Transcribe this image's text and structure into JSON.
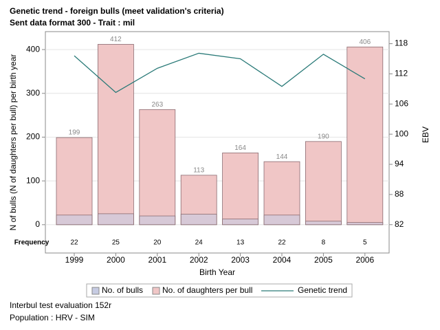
{
  "chart_data": {
    "type": "bar",
    "title": "Genetic trend - foreign bulls (meet validation's criteria)",
    "subtitle": "Sent data format 300 - Trait : mil",
    "x_label": "Birth Year",
    "y_label": "N of bulls (N of daughters per bull) per birth year",
    "y2_label": "EBV",
    "frequency_label": "Frequency",
    "categories": [
      "1999",
      "2000",
      "2001",
      "2002",
      "2003",
      "2004",
      "2005",
      "2006"
    ],
    "series": [
      {
        "name": "No. of bulls",
        "color": "#c6cbe2",
        "values": [
          22,
          25,
          20,
          24,
          13,
          22,
          8,
          5
        ]
      },
      {
        "name": "No. of daughters per bull",
        "color": "#f0c6c6",
        "values": [
          199,
          412,
          263,
          113,
          164,
          144,
          190,
          406
        ]
      },
      {
        "name": "Genetic trend",
        "type": "line",
        "axis": "y2",
        "color": "#2a7a78",
        "values": [
          115.6,
          108.3,
          113.1,
          116.1,
          115.0,
          109.5,
          115.9,
          111.0
        ]
      }
    ],
    "ylim": [
      -16,
      441
    ],
    "yticks": [
      0,
      100,
      200,
      300,
      400
    ],
    "y2lim": [
      80.6,
      120.4
    ],
    "y2ticks": [
      82,
      88,
      94,
      100,
      106,
      112,
      118
    ],
    "grid": true,
    "legend": "bottom",
    "footnotes": [
      "Interbul test evaluation 152r",
      "Population : HRV - SIM"
    ]
  }
}
